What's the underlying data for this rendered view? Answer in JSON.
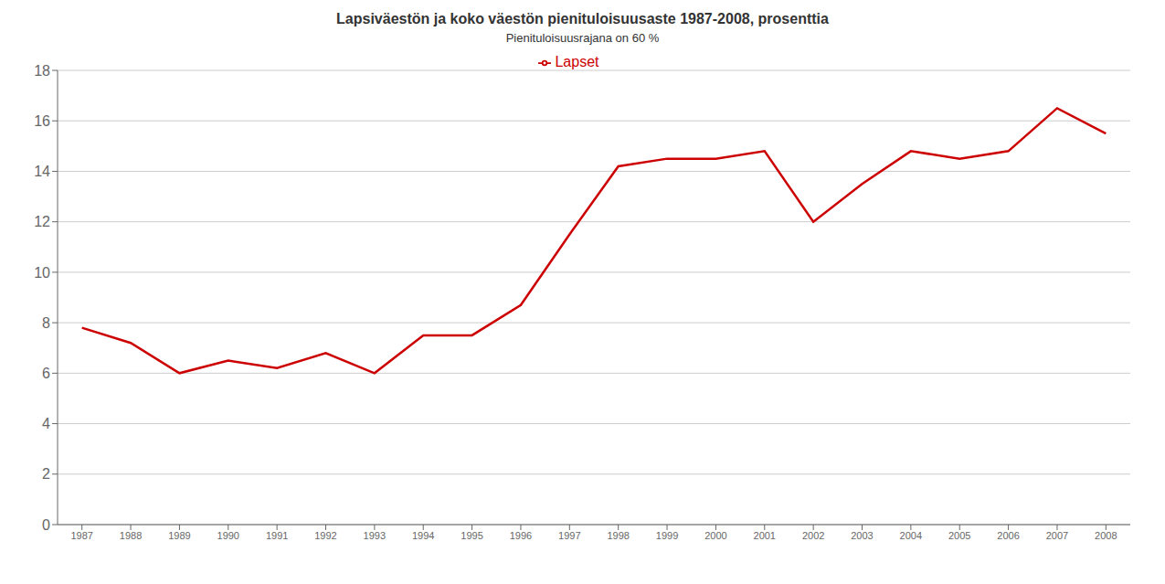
{
  "chart_data": {
    "type": "line",
    "title": "Lapsiväestön ja koko väestön pienituloisuusaste 1987-2008, prosenttia",
    "subtitle": "Pienituloisuusrajana on 60 %",
    "x": [
      1987,
      1988,
      1989,
      1990,
      1991,
      1992,
      1993,
      1994,
      1995,
      1996,
      1997,
      1998,
      1999,
      2000,
      2001,
      2002,
      2003,
      2004,
      2005,
      2006,
      2007,
      2008
    ],
    "series": [
      {
        "name": "Lapset",
        "color": "#cc0000",
        "values": [
          7.8,
          7.2,
          6.0,
          6.5,
          6.2,
          6.8,
          6.0,
          7.5,
          7.5,
          8.7,
          11.5,
          14.2,
          14.5,
          14.5,
          14.8,
          12.0,
          13.5,
          14.8,
          14.5,
          14.8,
          16.5,
          15.5
        ]
      }
    ],
    "xlim": [
      1986.5,
      2008.5
    ],
    "xticks": [
      1987,
      1988,
      1989,
      1990,
      1991,
      1992,
      1993,
      1994,
      1995,
      1996,
      1997,
      1998,
      1999,
      2000,
      2001,
      2002,
      2003,
      2004,
      2005,
      2006,
      2007,
      2008
    ],
    "ylim": [
      0,
      18
    ],
    "yticks": [
      0,
      2,
      4,
      6,
      8,
      10,
      12,
      14,
      16,
      18
    ],
    "grid": "y",
    "legend": "top"
  }
}
